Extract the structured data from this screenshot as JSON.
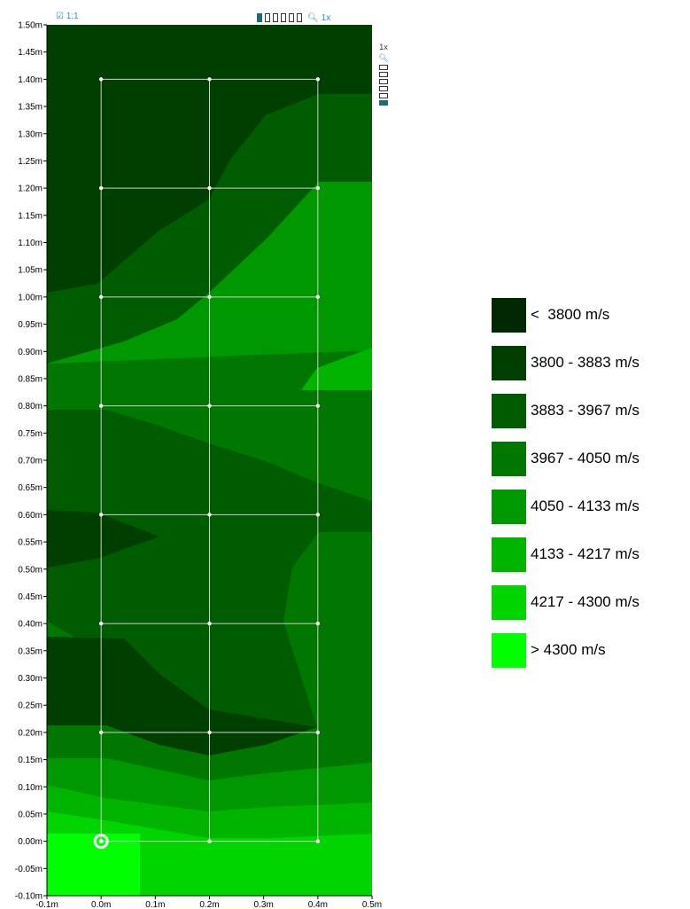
{
  "toolbar": {
    "ratio_label": "☑ 1:1",
    "zoom_label": "1x",
    "zoom_icon": "magnifier-plus-icon",
    "boxes": 6
  },
  "side_toolbar": {
    "zoom_label": "1x",
    "zoom_icon": "magnifier-plus-icon"
  },
  "axes": {
    "y_ticks": [
      "1.50m",
      "1.45m",
      "1.40m",
      "1.35m",
      "1.30m",
      "1.25m",
      "1.20m",
      "1.15m",
      "1.10m",
      "1.05m",
      "1.00m",
      "0.95m",
      "0.90m",
      "0.85m",
      "0.80m",
      "0.75m",
      "0.70m",
      "0.65m",
      "0.60m",
      "0.55m",
      "0.50m",
      "0.45m",
      "0.40m",
      "0.35m",
      "0.30m",
      "0.25m",
      "0.20m",
      "0.15m",
      "0.10m",
      "0.05m",
      "0.00m",
      "-0.05m",
      "-0.10m"
    ],
    "x_ticks": [
      "-0.1m",
      "0.0m",
      "0.1m",
      "0.2m",
      "0.3m",
      "0.4m",
      "0.5m"
    ]
  },
  "legend": [
    {
      "label": "<  3800 m/s",
      "color": "#002800"
    },
    {
      "label": "3800 - 3883 m/s",
      "color": "#003f00"
    },
    {
      "label": "3883 - 3967 m/s",
      "color": "#005c00"
    },
    {
      "label": "3967 - 4050 m/s",
      "color": "#007800"
    },
    {
      "label": "4050 - 4133 m/s",
      "color": "#009800"
    },
    {
      "label": "4133 - 4217 m/s",
      "color": "#00b400"
    },
    {
      "label": "4217 - 4300 m/s",
      "color": "#00d500"
    },
    {
      "label": "> 4300 m/s",
      "color": "#00ff00"
    }
  ]
}
